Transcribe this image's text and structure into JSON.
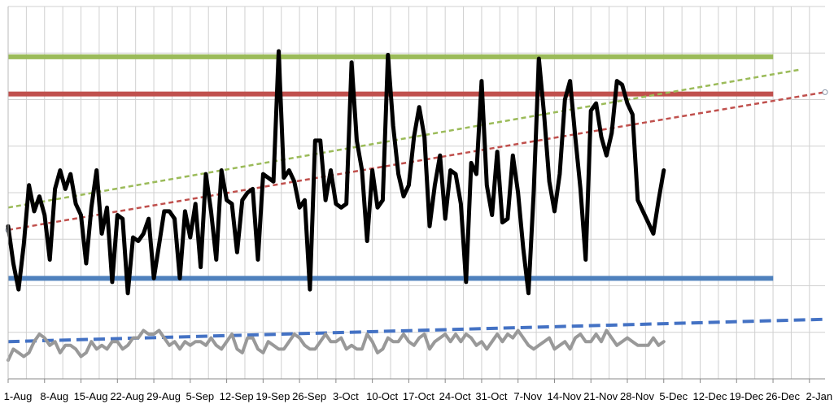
{
  "chart_data": {
    "type": "line",
    "title": "",
    "xlabel": "",
    "ylabel": "",
    "grid": true,
    "legend": "none",
    "x_tick_labels": [
      "1-Aug",
      "8-Aug",
      "15-Aug",
      "22-Aug",
      "29-Aug",
      "5-Sep",
      "12-Sep",
      "19-Sep",
      "26-Sep",
      "3-Oct",
      "10-Oct",
      "17-Oct",
      "24-Oct",
      "31-Oct",
      "7-Nov",
      "14-Nov",
      "21-Nov",
      "28-Nov",
      "5-Dec",
      "12-Dec",
      "19-Dec",
      "26-Dec",
      "2-Jan"
    ],
    "x_tick_days": [
      0,
      7,
      14,
      21,
      28,
      35,
      42,
      49,
      56,
      63,
      70,
      77,
      84,
      91,
      98,
      105,
      112,
      119,
      126,
      133,
      140,
      147,
      154
    ],
    "x_range_days": [
      0,
      157
    ],
    "y_range": [
      0,
      10
    ],
    "colors": {
      "main_series": "#000000",
      "secondary_series": "#999999",
      "upper_limit": "#9bbb59",
      "center_line": "#c0504d",
      "lower_limit": "#4f81bd",
      "main_trend": "#c0504d",
      "upper_trend": "#9bbb59",
      "secondary_trend": "#4472c4",
      "grid": "#d0d0d0"
    },
    "series": [
      {
        "key": "main",
        "x_days": [
          0,
          1,
          2,
          3,
          4,
          5,
          6,
          7,
          8,
          9,
          10,
          11,
          12,
          13,
          14,
          15,
          16,
          17,
          18,
          19,
          20,
          21,
          22,
          23,
          24,
          25,
          26,
          27,
          28,
          29,
          30,
          31,
          32,
          33,
          34,
          35,
          36,
          37,
          38,
          39,
          40,
          41,
          42,
          43,
          44,
          45,
          46,
          47,
          48,
          49,
          50,
          51,
          52,
          53,
          54,
          55,
          56,
          57,
          58,
          59,
          60,
          61,
          62,
          63,
          64,
          65,
          66,
          67,
          68,
          69,
          70,
          71,
          72,
          73,
          74,
          75,
          76,
          77,
          78,
          79,
          80,
          81,
          82,
          83,
          84,
          85,
          86,
          87,
          88,
          89,
          90,
          91,
          92,
          93,
          94,
          95,
          96,
          97,
          98,
          99,
          100,
          101,
          102,
          103,
          104,
          105,
          106,
          107,
          108,
          109,
          110,
          111,
          112,
          113,
          114,
          115,
          116,
          117,
          118,
          119,
          120,
          121,
          122,
          123,
          124,
          125,
          126
        ],
        "values": [
          4.1,
          3.1,
          2.4,
          3.6,
          5.2,
          4.5,
          4.9,
          4.4,
          3.2,
          5.1,
          5.6,
          5.1,
          5.5,
          4.7,
          4.4,
          3.1,
          4.6,
          5.6,
          3.9,
          4.6,
          2.6,
          4.4,
          4.3,
          2.3,
          3.8,
          3.7,
          3.9,
          4.3,
          2.7,
          3.6,
          4.5,
          4.5,
          4.3,
          2.7,
          4.5,
          3.8,
          4.7,
          3.0,
          5.5,
          4.5,
          3.2,
          5.6,
          4.8,
          4.7,
          3.4,
          4.8,
          5.0,
          5.1,
          3.2,
          5.5,
          5.4,
          5.3,
          8.8,
          5.4,
          5.6,
          5.3,
          4.6,
          4.8,
          2.4,
          6.4,
          6.4,
          4.8,
          5.6,
          4.7,
          4.6,
          4.7,
          8.5,
          6.4,
          5.6,
          3.7,
          5.6,
          4.6,
          4.8,
          8.7,
          6.8,
          5.5,
          4.9,
          5.2,
          6.5,
          7.3,
          6.5,
          4.1,
          5.2,
          6.0,
          4.3,
          5.6,
          5.5,
          4.7,
          2.6,
          5.8,
          5.5,
          8.0,
          5.2,
          4.4,
          6.1,
          4.2,
          4.3,
          6.0,
          5.0,
          3.5,
          2.3,
          5.0,
          8.6,
          7.1,
          5.3,
          4.5,
          5.5,
          7.5,
          8.0,
          6.5,
          5.1,
          3.2,
          7.2,
          7.4,
          6.5,
          6.0,
          6.6,
          8.0,
          7.9,
          7.4,
          7.1,
          4.8,
          4.5,
          4.2,
          3.9,
          4.8,
          5.6
        ],
        "values_relative": true
      },
      {
        "key": "secondary",
        "values_relative": true,
        "x_days": [
          0,
          1,
          2,
          3,
          4,
          5,
          6,
          7,
          8,
          9,
          10,
          11,
          12,
          13,
          14,
          15,
          16,
          17,
          18,
          19,
          20,
          21,
          22,
          23,
          24,
          25,
          26,
          27,
          28,
          29,
          30,
          31,
          32,
          33,
          34,
          35,
          36,
          37,
          38,
          39,
          40,
          41,
          42,
          43,
          44,
          45,
          46,
          47,
          48,
          49,
          50,
          51,
          52,
          53,
          54,
          55,
          56,
          57,
          58,
          59,
          60,
          61,
          62,
          63,
          64,
          65,
          66,
          67,
          68,
          69,
          70,
          71,
          72,
          73,
          74,
          75,
          76,
          77,
          78,
          79,
          80,
          81,
          82,
          83,
          84,
          85,
          86,
          87,
          88,
          89,
          90,
          91,
          92,
          93,
          94,
          95,
          96,
          97,
          98,
          99,
          100,
          101,
          102,
          103,
          104,
          105,
          106,
          107,
          108,
          109,
          110,
          111,
          112,
          113,
          114,
          115,
          116,
          117,
          118,
          119,
          120,
          121,
          122,
          123,
          124,
          125,
          126
        ],
        "values": [
          0.5,
          0.8,
          0.7,
          0.6,
          0.7,
          1.0,
          1.2,
          1.1,
          0.9,
          1.0,
          0.7,
          0.9,
          0.9,
          0.8,
          0.6,
          0.7,
          1.0,
          0.8,
          0.9,
          0.8,
          1.0,
          1.0,
          0.8,
          0.9,
          1.1,
          1.1,
          1.3,
          1.2,
          1.2,
          1.3,
          1.1,
          0.9,
          1.0,
          0.8,
          1.0,
          0.9,
          1.0,
          1.0,
          0.9,
          1.1,
          0.9,
          0.8,
          1.0,
          1.2,
          0.8,
          0.7,
          1.1,
          1.1,
          0.8,
          0.7,
          1.0,
          0.9,
          0.8,
          0.8,
          1.0,
          1.2,
          1.1,
          0.9,
          0.8,
          0.8,
          1.0,
          1.2,
          1.0,
          1.0,
          1.1,
          0.8,
          0.9,
          0.8,
          0.8,
          1.2,
          1.0,
          0.7,
          0.8,
          1.1,
          1.0,
          1.0,
          1.2,
          1.0,
          0.9,
          1.1,
          1.2,
          0.8,
          1.0,
          1.1,
          1.2,
          1.0,
          1.2,
          1.0,
          1.2,
          1.1,
          0.9,
          1.0,
          0.8,
          1.0,
          1.2,
          1.0,
          1.2,
          1.1,
          1.3,
          1.1,
          0.9,
          0.8,
          0.9,
          1.0,
          1.1,
          0.8,
          0.9,
          1.0,
          0.8,
          1.1,
          1.2,
          1.0,
          1.0,
          1.2,
          1.0,
          1.3,
          1.1,
          0.9,
          1.0,
          1.1,
          1.0,
          0.9,
          0.9,
          0.9,
          1.1,
          0.9,
          1.0
        ]
      }
    ],
    "reference_lines": [
      {
        "key": "upper_limit",
        "value": 8.65,
        "values_relative": true
      },
      {
        "key": "center_line",
        "value": 7.65,
        "values_relative": true
      },
      {
        "key": "lower_limit",
        "value": 2.7,
        "values_relative": true
      }
    ],
    "trendlines": [
      {
        "key": "main_trend",
        "from_day": 0,
        "from_value": 4.0,
        "to_day": 157,
        "to_value": 7.7,
        "dash": "short"
      },
      {
        "key": "upper_trend",
        "from_day": 0,
        "from_value": 4.6,
        "to_day": 152,
        "to_value": 8.3,
        "dash": "short"
      },
      {
        "key": "secondary_trend",
        "from_day": 0,
        "from_value": 1.0,
        "to_day": 157,
        "to_value": 1.6,
        "dash": "long"
      }
    ]
  }
}
